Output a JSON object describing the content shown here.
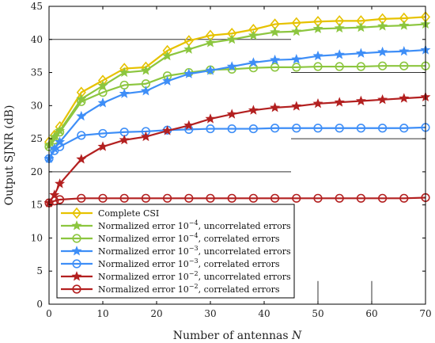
{
  "chart_data": {
    "type": "line",
    "xlabel": "Number of antennas N",
    "ylabel": "Output SJNR (dB)",
    "xlim": [
      0,
      70
    ],
    "ylim": [
      0,
      45
    ],
    "xticks": [
      0,
      10,
      20,
      30,
      40,
      50,
      60,
      70
    ],
    "yticks": [
      0,
      5,
      10,
      15,
      20,
      25,
      30,
      35,
      40,
      45
    ],
    "legend_position": "bottom-left",
    "series": [
      {
        "name": "Complete CSI",
        "color": "#e6c200",
        "marker": "diamond",
        "x": [
          0,
          1,
          2,
          6,
          10,
          14,
          18,
          22,
          26,
          30,
          34,
          38,
          42,
          46,
          50,
          54,
          58,
          62,
          66,
          70
        ],
        "y": [
          24.5,
          25.5,
          26.8,
          32.0,
          33.8,
          35.6,
          35.8,
          38.3,
          39.8,
          40.6,
          40.9,
          41.5,
          42.3,
          42.5,
          42.7,
          42.8,
          42.8,
          43.1,
          43.2,
          43.4
        ]
      },
      {
        "name": "Normalized error 10^-4, uncorrelated errors",
        "color": "#8cc63f",
        "marker": "star",
        "x": [
          0,
          1,
          2,
          6,
          10,
          14,
          18,
          22,
          26,
          30,
          34,
          38,
          42,
          46,
          50,
          54,
          58,
          62,
          66,
          70
        ],
        "y": [
          24.0,
          25.3,
          26.2,
          31.0,
          33.0,
          35.0,
          35.3,
          37.5,
          38.5,
          39.5,
          40.0,
          40.6,
          41.1,
          41.2,
          41.6,
          41.7,
          41.8,
          42.0,
          42.1,
          42.3
        ]
      },
      {
        "name": "Normalized error 10^-4, correlated errors",
        "color": "#8cc63f",
        "marker": "circle",
        "x": [
          0,
          1,
          2,
          6,
          10,
          14,
          18,
          22,
          26,
          30,
          34,
          38,
          42,
          46,
          50,
          54,
          58,
          62,
          66,
          70
        ],
        "y": [
          23.8,
          24.8,
          26.0,
          30.6,
          32.0,
          33.1,
          33.3,
          34.5,
          35.0,
          35.4,
          35.5,
          35.7,
          35.8,
          35.8,
          35.9,
          35.9,
          35.9,
          36.0,
          36.0,
          36.0
        ]
      },
      {
        "name": "Normalized error 10^-3, uncorrelated errors",
        "color": "#3e8ef7",
        "marker": "star",
        "x": [
          0,
          1,
          2,
          6,
          10,
          14,
          18,
          22,
          26,
          30,
          34,
          38,
          42,
          46,
          50,
          54,
          58,
          62,
          66,
          70
        ],
        "y": [
          22.0,
          23.5,
          24.5,
          28.4,
          30.4,
          31.8,
          32.2,
          33.7,
          34.8,
          35.3,
          35.9,
          36.5,
          36.9,
          37.0,
          37.5,
          37.7,
          37.9,
          38.1,
          38.2,
          38.4
        ]
      },
      {
        "name": "Normalized error 10^-3, correlated errors",
        "color": "#3e8ef7",
        "marker": "circle",
        "x": [
          0,
          1,
          2,
          6,
          10,
          14,
          18,
          22,
          26,
          30,
          34,
          38,
          42,
          46,
          50,
          54,
          58,
          62,
          66,
          70
        ],
        "y": [
          22.0,
          23.2,
          23.8,
          25.5,
          25.8,
          26.0,
          26.1,
          26.3,
          26.4,
          26.5,
          26.5,
          26.5,
          26.6,
          26.6,
          26.6,
          26.6,
          26.6,
          26.6,
          26.6,
          26.7
        ]
      },
      {
        "name": "Normalized error 10^-2, uncorrelated errors",
        "color": "#b32020",
        "marker": "star",
        "x": [
          0,
          1,
          2,
          6,
          10,
          14,
          18,
          22,
          26,
          30,
          34,
          38,
          42,
          46,
          50,
          54,
          58,
          62,
          66,
          70
        ],
        "y": [
          15.3,
          16.5,
          18.2,
          21.9,
          23.8,
          24.8,
          25.3,
          26.2,
          27.0,
          28.0,
          28.7,
          29.3,
          29.7,
          29.9,
          30.3,
          30.5,
          30.7,
          30.9,
          31.1,
          31.3
        ]
      },
      {
        "name": "Normalized error 10^-2, correlated errors",
        "color": "#b32020",
        "marker": "circle",
        "x": [
          0,
          1,
          2,
          6,
          10,
          14,
          18,
          22,
          26,
          30,
          34,
          38,
          42,
          46,
          50,
          54,
          58,
          62,
          66,
          70
        ],
        "y": [
          15.3,
          15.6,
          15.8,
          16.0,
          16.0,
          16.0,
          16.0,
          16.0,
          16.0,
          16.0,
          16.0,
          16.0,
          16.0,
          16.0,
          16.0,
          16.0,
          16.0,
          16.0,
          16.0,
          16.1
        ]
      }
    ]
  },
  "legend": [
    {
      "pre": "Complete CSI",
      "sup": "",
      "post": ""
    },
    {
      "pre": "Normalized error 10",
      "sup": "−4",
      "post": ", uncorrelated errors"
    },
    {
      "pre": "Normalized error 10",
      "sup": "−4",
      "post": ", correlated errors"
    },
    {
      "pre": "Normalized error 10",
      "sup": "−3",
      "post": ", uncorrelated errors"
    },
    {
      "pre": "Normalized error 10",
      "sup": "−3",
      "post": ", correlated errors"
    },
    {
      "pre": "Normalized error 10",
      "sup": "−2",
      "post": ", uncorrelated errors"
    },
    {
      "pre": "Normalized error 10",
      "sup": "−2",
      "post": ", correlated errors"
    }
  ],
  "xlabel_parts": {
    "text": "Number of antennas ",
    "var": "N"
  }
}
